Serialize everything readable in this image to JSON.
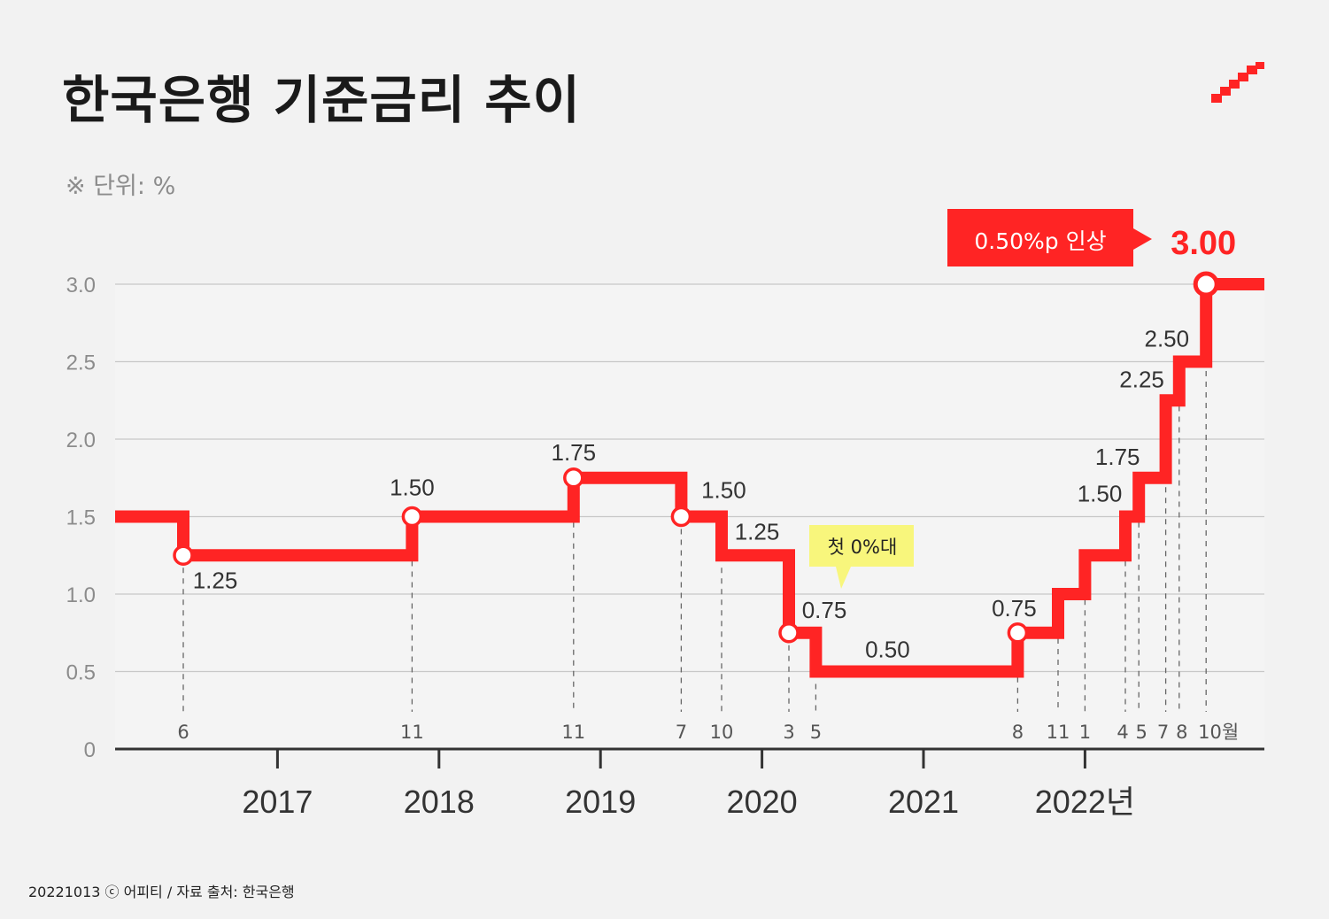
{
  "title": "한국은행 기준금리 추이",
  "unit_note": "※ 단위: %",
  "footer": "20221013 ⓒ 어피티 / 자료 출처: 한국은행",
  "colors": {
    "line": "#ff2424",
    "callout_yellow": "#f8f67c",
    "callout_red": "#ff2424",
    "background": "#f2f2f2"
  },
  "logo_icon": "stairs-up-icon",
  "chart_data": {
    "type": "line",
    "step": true,
    "y_ticks": [
      "0",
      "0.5",
      "1.0",
      "1.5",
      "2.0",
      "2.5",
      "3.0"
    ],
    "ylim": [
      0,
      3.0
    ],
    "x_years": [
      "2017",
      "2018",
      "2019",
      "2020",
      "2021",
      "2022년"
    ],
    "series": [
      {
        "values": [
          {
            "date": "2016-06",
            "month": "6",
            "rate": 1.25,
            "label": "1.25"
          },
          {
            "date": "2017-11",
            "month": "11",
            "rate": 1.5,
            "label": "1.50"
          },
          {
            "date": "2018-11",
            "month": "11",
            "rate": 1.75,
            "label": "1.75"
          },
          {
            "date": "2019-07",
            "month": "7",
            "rate": 1.5,
            "label": "1.50"
          },
          {
            "date": "2019-10",
            "month": "10",
            "rate": 1.25,
            "label": "1.25"
          },
          {
            "date": "2020-03",
            "month": "3",
            "rate": 0.75,
            "label": "0.75"
          },
          {
            "date": "2020-05",
            "month": "5",
            "rate": 0.5,
            "label": "0.50"
          },
          {
            "date": "2021-08",
            "month": "8",
            "rate": 0.75,
            "label": "0.75"
          },
          {
            "date": "2021-11",
            "month": "11",
            "rate": 1.0,
            "label": ""
          },
          {
            "date": "2022-01",
            "month": "1",
            "rate": 1.25,
            "label": ""
          },
          {
            "date": "2022-04",
            "month": "4",
            "rate": 1.5,
            "label": "1.50"
          },
          {
            "date": "2022-05",
            "month": "5",
            "rate": 1.75,
            "label": "1.75"
          },
          {
            "date": "2022-07",
            "month": "7",
            "rate": 2.25,
            "label": "2.25"
          },
          {
            "date": "2022-08",
            "month": "8",
            "rate": 2.5,
            "label": "2.50"
          },
          {
            "date": "2022-10",
            "month": "10월",
            "rate": 3.0,
            "label": "3.00"
          }
        ]
      }
    ],
    "start_rate": 1.5,
    "annotations": [
      {
        "text": "첫 0%대",
        "date": "2020-03"
      },
      {
        "text": "0.50%p 인상",
        "date": "2022-10"
      }
    ]
  }
}
